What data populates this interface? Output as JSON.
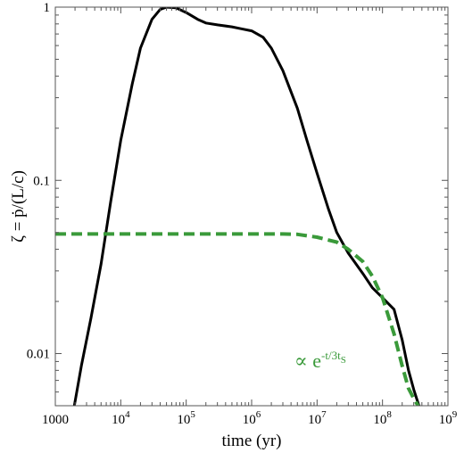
{
  "chart_data": {
    "type": "line",
    "title": "",
    "xlabel": "time (yr)",
    "ylabel": "ζ = ṗ/(L/c)",
    "xscale": "log",
    "yscale": "log",
    "xlim": [
      1000,
      1000000000
    ],
    "ylim": [
      0.005,
      1
    ],
    "x_ticks": [
      {
        "value": 1000,
        "base": "1000",
        "exp": ""
      },
      {
        "value": 10000,
        "base": "10",
        "exp": "4"
      },
      {
        "value": 100000,
        "base": "10",
        "exp": "5"
      },
      {
        "value": 1000000,
        "base": "10",
        "exp": "6"
      },
      {
        "value": 10000000,
        "base": "10",
        "exp": "7"
      },
      {
        "value": 100000000,
        "base": "10",
        "exp": "8"
      },
      {
        "value": 1000000000,
        "base": "10",
        "exp": "9"
      }
    ],
    "y_ticks": [
      {
        "value": 0.01,
        "label": "0.01"
      },
      {
        "value": 0.1,
        "label": "0.1"
      },
      {
        "value": 1,
        "label": "1"
      }
    ],
    "grid": false,
    "series": [
      {
        "style": "solid",
        "color": "#000000",
        "x": [
          1950,
          2500,
          3500,
          5000,
          7000,
          10000,
          15000,
          20000,
          30000,
          40000,
          50000,
          70000,
          100000,
          150000,
          200000,
          300000,
          500000,
          700000,
          1000000,
          1500000,
          2000000,
          3000000,
          5000000,
          7000000,
          10000000,
          15000000,
          20000000,
          30000000,
          50000000,
          70000000,
          100000000,
          150000000,
          200000000,
          250000000,
          300000000,
          360000000
        ],
        "y": [
          0.005,
          0.0085,
          0.016,
          0.033,
          0.075,
          0.17,
          0.36,
          0.58,
          0.85,
          0.97,
          1.0,
          0.99,
          0.93,
          0.85,
          0.81,
          0.79,
          0.77,
          0.75,
          0.73,
          0.67,
          0.58,
          0.43,
          0.26,
          0.17,
          0.11,
          0.068,
          0.05,
          0.038,
          0.029,
          0.024,
          0.021,
          0.018,
          0.012,
          0.008,
          0.0062,
          0.005
        ]
      },
      {
        "style": "dashed",
        "color": "#3a9a3a",
        "x": [
          1000,
          3000,
          10000,
          100000,
          1000000,
          3000000,
          5000000,
          10000000,
          20000000,
          30000000,
          50000000,
          70000000,
          100000000,
          150000000,
          200000000,
          250000000,
          300000000,
          350000000
        ],
        "y": [
          0.049,
          0.049,
          0.049,
          0.049,
          0.049,
          0.049,
          0.0488,
          0.047,
          0.044,
          0.04,
          0.034,
          0.028,
          0.021,
          0.013,
          0.0085,
          0.0063,
          0.0055,
          0.005
        ]
      }
    ],
    "annotation": {
      "base": "∝ e",
      "exp": "-t/3t",
      "sub": "S"
    }
  }
}
